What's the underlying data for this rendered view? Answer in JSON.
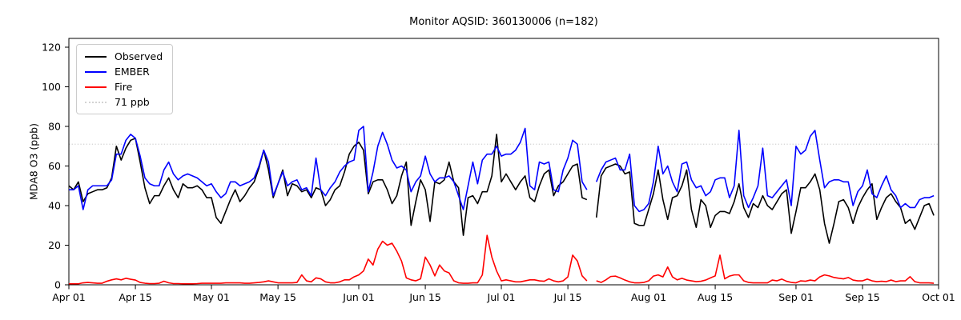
{
  "chart_data": {
    "type": "line",
    "title": "Monitor AQSID: 360130006 (n=182)",
    "ylabel": "MDA8 O3 (ppb)",
    "xlabel": "",
    "ylim": [
      0,
      124.5
    ],
    "yticks": [
      0,
      20,
      40,
      60,
      80,
      100,
      120
    ],
    "x_total_days": 183,
    "x_start_label": "Apr 01",
    "x_end_label": "Oct 01",
    "xticks": [
      {
        "day": 0,
        "label": "Apr 01"
      },
      {
        "day": 14,
        "label": "Apr 15"
      },
      {
        "day": 30,
        "label": "May 01"
      },
      {
        "day": 44,
        "label": "May 15"
      },
      {
        "day": 61,
        "label": "Jun 01"
      },
      {
        "day": 75,
        "label": "Jun 15"
      },
      {
        "day": 91,
        "label": "Jul 01"
      },
      {
        "day": 105,
        "label": "Jul 15"
      },
      {
        "day": 122,
        "label": "Aug 01"
      },
      {
        "day": 136,
        "label": "Aug 15"
      },
      {
        "day": 153,
        "label": "Sep 01"
      },
      {
        "day": 167,
        "label": "Sep 15"
      },
      {
        "day": 183,
        "label": "Oct 01"
      }
    ],
    "grid": false,
    "legend_position": "upper-left",
    "threshold": {
      "label": "71 ppb",
      "value": 71,
      "color": "#d3d3d3",
      "line_style": "dotted"
    },
    "series": [
      {
        "name": "Observed",
        "color": "#000000",
        "values": [
          50,
          48,
          52,
          42,
          46,
          47,
          48,
          48,
          49,
          54,
          70,
          63,
          69,
          73,
          74,
          62,
          49,
          41,
          45,
          45,
          50,
          54,
          48,
          44,
          51,
          49,
          49,
          50,
          48,
          44,
          44,
          34,
          31,
          37,
          43,
          48,
          42,
          45,
          49,
          52,
          59,
          68,
          58,
          44,
          51,
          58,
          45,
          51,
          50,
          47,
          48,
          44,
          49,
          48,
          40,
          43,
          48,
          50,
          57,
          66,
          70,
          72,
          68,
          46,
          52,
          53,
          53,
          48,
          41,
          45,
          55,
          62,
          30,
          42,
          53,
          48,
          32,
          52,
          51,
          53,
          62,
          52,
          49,
          25,
          44,
          45,
          41,
          47,
          47,
          55,
          76,
          52,
          56,
          52,
          48,
          52,
          55,
          44,
          42,
          50,
          56,
          58,
          45,
          50,
          52,
          56,
          60,
          61,
          44,
          43,
          null,
          34,
          55,
          59,
          60,
          61,
          60,
          56,
          57,
          31,
          30,
          30,
          38,
          46,
          58,
          43,
          33,
          44,
          45,
          50,
          58,
          38,
          29,
          43,
          40,
          29,
          35,
          37,
          37,
          36,
          42,
          51,
          39,
          34,
          41,
          39,
          45,
          40,
          38,
          42,
          46,
          48,
          26,
          37,
          49,
          49,
          52,
          56,
          48,
          31,
          21,
          31,
          42,
          43,
          39,
          31,
          39,
          44,
          48,
          51,
          33,
          39,
          44,
          46,
          42,
          39,
          31,
          33,
          28,
          34,
          40,
          41,
          35
        ]
      },
      {
        "name": "EMBER",
        "color": "#0000ff",
        "values": [
          48,
          48,
          50,
          38,
          48,
          50,
          50,
          50,
          50,
          53,
          66,
          66,
          73,
          76,
          74,
          65,
          54,
          51,
          50,
          50,
          58,
          62,
          56,
          53,
          55,
          56,
          55,
          54,
          52,
          50,
          51,
          47,
          44,
          46,
          52,
          52,
          50,
          51,
          52,
          54,
          60,
          68,
          62,
          45,
          51,
          57,
          50,
          52,
          53,
          48,
          49,
          45,
          64,
          48,
          45,
          49,
          52,
          57,
          60,
          62,
          63,
          78,
          80,
          47,
          57,
          70,
          77,
          71,
          63,
          59,
          60,
          58,
          47,
          52,
          55,
          65,
          56,
          52,
          54,
          54,
          55,
          52,
          45,
          38,
          50,
          62,
          51,
          63,
          66,
          66,
          70,
          65,
          66,
          66,
          68,
          72,
          79,
          50,
          48,
          62,
          61,
          62,
          48,
          47,
          58,
          64,
          73,
          71,
          52,
          48,
          null,
          52,
          58,
          62,
          63,
          64,
          58,
          58,
          66,
          40,
          37,
          38,
          41,
          52,
          70,
          56,
          60,
          52,
          47,
          61,
          62,
          53,
          49,
          50,
          45,
          47,
          53,
          54,
          54,
          44,
          50,
          78,
          45,
          39,
          44,
          50,
          69,
          45,
          44,
          47,
          50,
          53,
          40,
          70,
          66,
          68,
          75,
          78,
          63,
          49,
          52,
          53,
          53,
          52,
          52,
          40,
          47,
          50,
          58,
          46,
          44,
          50,
          55,
          48,
          45,
          39,
          41,
          39,
          39,
          43,
          44,
          44,
          45
        ]
      },
      {
        "name": "Fire",
        "color": "#ff0000",
        "values": [
          0.5,
          0.5,
          0.5,
          1,
          1.2,
          1,
          0.8,
          0.8,
          1.8,
          2.5,
          3,
          2.5,
          3.3,
          2.8,
          2.4,
          1.2,
          0.8,
          0.6,
          0.6,
          0.8,
          1.8,
          1,
          0.6,
          0.6,
          0.5,
          0.5,
          0.5,
          0.6,
          0.8,
          0.8,
          0.8,
          0.8,
          0.8,
          1,
          1,
          1,
          1,
          0.8,
          0.8,
          1,
          1.2,
          1.5,
          2,
          1.5,
          1,
          1,
          1,
          1,
          1.2,
          5,
          2,
          1.5,
          3.5,
          3,
          1.5,
          1,
          1,
          1.5,
          2.5,
          2.5,
          4,
          5,
          7,
          13,
          10,
          18,
          22,
          20,
          21,
          17,
          12,
          3.5,
          2.5,
          2,
          3,
          14,
          10,
          4.5,
          10,
          7,
          6,
          2,
          1,
          0.8,
          0.8,
          1,
          1,
          5,
          25,
          14,
          7,
          2,
          2.5,
          2,
          1.5,
          1.5,
          2,
          2.5,
          2.5,
          2,
          1.8,
          3,
          2,
          1.5,
          2,
          4,
          15,
          12,
          4.5,
          2,
          null,
          2,
          1.2,
          2.5,
          4.2,
          4.4,
          3.5,
          2.4,
          1.5,
          1,
          1,
          1.2,
          2,
          4.4,
          5,
          4,
          9,
          4,
          2.5,
          3.3,
          2.4,
          2,
          1.6,
          1.8,
          2.4,
          3.5,
          4.5,
          15,
          3,
          4.4,
          5,
          5,
          2,
          1.2,
          1,
          1,
          1,
          1,
          2.4,
          2,
          2.9,
          1.8,
          1.2,
          1,
          2,
          1.8,
          2.4,
          2,
          4,
          5,
          4.5,
          3.7,
          3.3,
          3,
          3.7,
          2.4,
          2,
          2,
          2.9,
          2,
          1.6,
          1.8,
          1.6,
          2.4,
          1.6,
          2,
          2,
          4.1,
          1.6,
          1,
          1,
          1,
          0.8
        ]
      }
    ]
  }
}
